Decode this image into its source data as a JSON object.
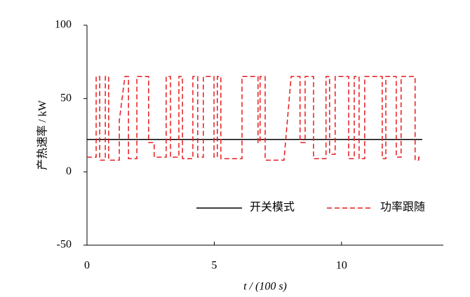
{
  "chart_data": {
    "type": "line",
    "xlabel": "t / (100 s)",
    "ylabel": "产热速率 / kW",
    "xlim": [
      0,
      14
    ],
    "xticks": [
      0,
      5,
      10
    ],
    "ylim": [
      -50,
      100
    ],
    "yticks": [
      -50,
      0,
      50,
      100
    ],
    "series": [
      {
        "name": "开关模式",
        "color": "#000000",
        "dash": false,
        "x": [
          0,
          13.17
        ],
        "values": [
          22,
          22
        ]
      },
      {
        "name": "功率跟随",
        "color": "#e8191c",
        "dash": true,
        "x": [
          0,
          0.36,
          0.36,
          0.5,
          0.5,
          0.72,
          0.72,
          0.85,
          0.85,
          1.27,
          1.27,
          1.49,
          1.63,
          1.63,
          1.96,
          1.96,
          2.42,
          2.42,
          2.64,
          2.64,
          3.11,
          3.11,
          3.28,
          3.28,
          3.61,
          3.61,
          3.75,
          3.75,
          4.16,
          4.16,
          4.35,
          4.35,
          4.57,
          4.57,
          4.99,
          4.99,
          5.12,
          5.12,
          5.26,
          5.26,
          6.09,
          6.09,
          6.72,
          6.72,
          6.8,
          6.8,
          7.0,
          7.0,
          7.74,
          8.02,
          8.37,
          8.37,
          8.57,
          8.57,
          8.9,
          8.9,
          9.39,
          9.39,
          9.53,
          9.53,
          9.75,
          9.75,
          10.28,
          10.28,
          10.5,
          10.5,
          10.69,
          10.69,
          10.91,
          10.91,
          11.6,
          11.6,
          11.74,
          11.74,
          12.15,
          12.15,
          12.34,
          12.34,
          12.89,
          12.89,
          13.03,
          13.03,
          13.17
        ],
        "values": [
          10,
          10,
          65,
          65,
          8,
          8,
          65,
          65,
          8,
          8,
          35,
          65,
          65,
          9,
          9,
          65,
          65,
          20,
          20,
          10,
          10,
          65,
          65,
          10,
          10,
          65,
          65,
          9,
          9,
          65,
          65,
          10,
          10,
          65,
          65,
          10,
          10,
          65,
          65,
          9,
          9,
          65,
          65,
          20,
          20,
          65,
          65,
          8,
          8,
          65,
          65,
          20,
          20,
          65,
          65,
          9,
          9,
          65,
          65,
          12,
          12,
          65,
          65,
          9,
          9,
          65,
          65,
          9,
          9,
          65,
          65,
          9,
          9,
          65,
          65,
          10,
          10,
          65,
          65,
          8,
          8,
          10,
          10
        ]
      }
    ]
  }
}
